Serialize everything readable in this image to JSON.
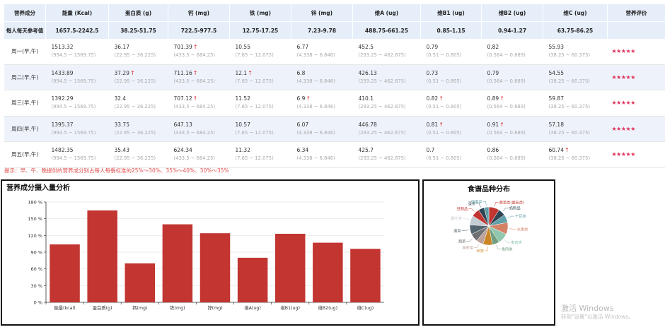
{
  "table": {
    "headers": [
      "营养成分",
      "能量 (Kcal)",
      "蛋白质 (g)",
      "钙 (mg)",
      "铁 (mg)",
      "锌 (mg)",
      "维A (ug)",
      "维B1 (ug)",
      "维B2 (ug)",
      "维C (ug)",
      "营养评价"
    ],
    "reference": {
      "label": "每人每天参考值",
      "values": [
        "1657.5-2242.5",
        "38.25-51.75",
        "722.5-977.5",
        "12.75-17.25",
        "7.23-9.78",
        "488.75-661.25",
        "0.85-1.15",
        "0.94-1.27",
        "63.75-86.25",
        ""
      ]
    },
    "rows": [
      {
        "day": "周一(早,午)",
        "rating": "★★★★★",
        "cells": [
          {
            "v": "1513.32",
            "r": "(994.5 ~ 1569.75)",
            "up": ""
          },
          {
            "v": "36.17",
            "r": "(22.95 ~ 36.225)",
            "up": ""
          },
          {
            "v": "701.39",
            "r": "(433.5 ~ 684.25)",
            "up": "↑"
          },
          {
            "v": "10.55",
            "r": "(7.65 ~ 12.075)",
            "up": ""
          },
          {
            "v": "6.77",
            "r": "(4.338 ~ 6.846)",
            "up": ""
          },
          {
            "v": "452.5",
            "r": "(293.25 ~ 462.875)",
            "up": ""
          },
          {
            "v": "0.79",
            "r": "(0.51 ~ 0.805)",
            "up": ""
          },
          {
            "v": "0.82",
            "r": "(0.564 ~ 0.889)",
            "up": ""
          },
          {
            "v": "55.93",
            "r": "(38.25 ~ 60.375)",
            "up": ""
          }
        ]
      },
      {
        "day": "周二(早,午)",
        "rating": "★★★★★",
        "cells": [
          {
            "v": "1433.89",
            "r": "(994.5 ~ 1569.75)",
            "up": ""
          },
          {
            "v": "37.29",
            "r": "(22.95 ~ 36.225)",
            "up": "↑"
          },
          {
            "v": "711.16",
            "r": "(433.5 ~ 684.25)",
            "up": "↑"
          },
          {
            "v": "12.1",
            "r": "(7.65 ~ 12.075)",
            "up": "↑"
          },
          {
            "v": "6.8",
            "r": "(4.338 ~ 6.846)",
            "up": ""
          },
          {
            "v": "426.13",
            "r": "(293.25 ~ 462.875)",
            "up": ""
          },
          {
            "v": "0.73",
            "r": "(0.51 ~ 0.805)",
            "up": ""
          },
          {
            "v": "0.79",
            "r": "(0.564 ~ 0.889)",
            "up": ""
          },
          {
            "v": "54.55",
            "r": "(38.25 ~ 60.375)",
            "up": ""
          }
        ]
      },
      {
        "day": "周三(早,午)",
        "rating": "★★★★★",
        "cells": [
          {
            "v": "1392.29",
            "r": "(994.5 ~ 1569.75)",
            "up": ""
          },
          {
            "v": "32.4",
            "r": "(22.95 ~ 36.225)",
            "up": ""
          },
          {
            "v": "707.12",
            "r": "(433.5 ~ 684.25)",
            "up": "↑"
          },
          {
            "v": "11.52",
            "r": "(7.65 ~ 12.075)",
            "up": ""
          },
          {
            "v": "6.9",
            "r": "(4.338 ~ 6.846)",
            "up": "↑"
          },
          {
            "v": "410.1",
            "r": "(293.25 ~ 462.875)",
            "up": ""
          },
          {
            "v": "0.82",
            "r": "(0.51 ~ 0.805)",
            "up": "↑"
          },
          {
            "v": "0.89",
            "r": "(0.564 ~ 0.889)",
            "up": "↑"
          },
          {
            "v": "59.87",
            "r": "(38.25 ~ 60.375)",
            "up": ""
          }
        ]
      },
      {
        "day": "周四(早,午)",
        "rating": "★★★★★",
        "cells": [
          {
            "v": "1395.37",
            "r": "(994.5 ~ 1569.75)",
            "up": ""
          },
          {
            "v": "33.75",
            "r": "(22.95 ~ 36.225)",
            "up": ""
          },
          {
            "v": "647.13",
            "r": "(433.5 ~ 684.25)",
            "up": ""
          },
          {
            "v": "10.57",
            "r": "(7.65 ~ 12.075)",
            "up": ""
          },
          {
            "v": "6.07",
            "r": "(4.338 ~ 6.846)",
            "up": ""
          },
          {
            "v": "446.78",
            "r": "(293.25 ~ 462.875)",
            "up": ""
          },
          {
            "v": "0.81",
            "r": "(0.51 ~ 0.805)",
            "up": "↑"
          },
          {
            "v": "0.91",
            "r": "(0.564 ~ 0.889)",
            "up": "↑"
          },
          {
            "v": "57.18",
            "r": "(38.25 ~ 60.375)",
            "up": ""
          }
        ]
      },
      {
        "day": "周五(早,午)",
        "rating": "★★★★★",
        "cells": [
          {
            "v": "1482.35",
            "r": "(994.5 ~ 1569.75)",
            "up": ""
          },
          {
            "v": "35.43",
            "r": "(22.95 ~ 36.225)",
            "up": ""
          },
          {
            "v": "624.34",
            "r": "(433.5 ~ 684.25)",
            "up": ""
          },
          {
            "v": "11.32",
            "r": "(7.65 ~ 12.075)",
            "up": ""
          },
          {
            "v": "6.34",
            "r": "(4.338 ~ 6.846)",
            "up": ""
          },
          {
            "v": "425.7",
            "r": "(293.25 ~ 462.875)",
            "up": ""
          },
          {
            "v": "0.7",
            "r": "(0.51 ~ 0.805)",
            "up": ""
          },
          {
            "v": "0.86",
            "r": "(0.564 ~ 0.889)",
            "up": ""
          },
          {
            "v": "60.74",
            "r": "(38.25 ~ 60.375)",
            "up": "↑"
          }
        ]
      }
    ]
  },
  "tip": "提示：早、午、晚提供的营养成分别占每人每餐标准的25%～30%、35%～40%、30%～35%",
  "colors": {
    "bar": "#c23531",
    "header_bg": "#e6eefa",
    "up_arrow": "#e03030",
    "stars": "#e0305a",
    "tip": "#e05050"
  },
  "chart_data": [
    {
      "type": "bar",
      "title": "营养成分摄入量分析",
      "categories": [
        "能量(kcal)",
        "蛋白质(g)",
        "钙(mg)",
        "铁(mg)",
        "锌(mg)",
        "维A(ug)",
        "维B1(ug)",
        "维B2(ug)",
        "维C(ug)"
      ],
      "values": [
        104,
        165,
        70,
        140,
        124,
        80,
        123,
        107,
        96
      ],
      "ylim": [
        0,
        180
      ],
      "yticks": [
        "0 %",
        "30 %",
        "60 %",
        "90 %",
        "120 %",
        "150 %",
        "180 %"
      ],
      "xlabel": "",
      "ylabel": ""
    },
    {
      "type": "pie",
      "title": "食谱品种分布",
      "slices": [
        {
          "label": "蔬菜类(番茄类)",
          "value": 9,
          "color": "#c23531"
        },
        {
          "label": "奶制品",
          "value": 6,
          "color": "#2f4554"
        },
        {
          "label": "干豆类",
          "value": 7,
          "color": "#61a0a8"
        },
        {
          "label": "水果类",
          "value": 10,
          "color": "#d48265"
        },
        {
          "label": "畜肉类",
          "value": 9,
          "color": "#91c7ae"
        },
        {
          "label": "禽肉类",
          "value": 6,
          "color": "#749f83"
        },
        {
          "label": "米类",
          "value": 8,
          "color": "#ca8622"
        },
        {
          "label": "鱼虾类",
          "value": 6,
          "color": "#bda29a"
        },
        {
          "label": "蔬菜",
          "value": 7,
          "color": "#6e7074"
        },
        {
          "label": "面类",
          "value": 8,
          "color": "#546570"
        },
        {
          "label": "薯叶类",
          "value": 8,
          "color": "#c4ccd3"
        },
        {
          "label": "豆制品",
          "value": 7,
          "color": "#c23531"
        },
        {
          "label": "蛋类",
          "value": 5,
          "color": "#2f4554"
        },
        {
          "label": "坚果类",
          "value": 4,
          "color": "#61a0a8"
        }
      ]
    }
  ],
  "watermark": {
    "line1": "激活 Windows",
    "line2": "转到\"设置\"以激活 Windows。"
  }
}
